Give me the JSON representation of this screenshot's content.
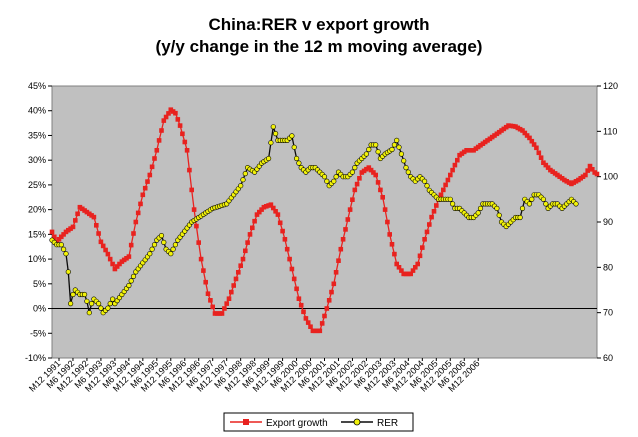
{
  "chart_data": {
    "type": "line",
    "title": "China:RER v export growth",
    "subtitle": "(y/y change in the 12 m moving average)",
    "y_left": {
      "ylim": [
        -0.1,
        0.45
      ],
      "ticks": [
        "-10%",
        "-5%",
        "0%",
        "5%",
        "10%",
        "15%",
        "20%",
        "25%",
        "30%",
        "35%",
        "40%",
        "45%"
      ]
    },
    "y_right": {
      "ylim": [
        60,
        120
      ],
      "ticks": [
        "60",
        "70",
        "80",
        "90",
        "100",
        "110",
        "120"
      ]
    },
    "x_tick_labels": [
      "M12 1991",
      "M6 1992",
      "M12 1992",
      "M6 1993",
      "M12 1993",
      "M6 1994",
      "M12 1994",
      "M6 1995",
      "M12 1995",
      "M6 1996",
      "M12 1996",
      "M6 1997",
      "M12 1997",
      "M6 1998",
      "M12 1998",
      "M6 1999",
      "M12 1999",
      "M6 2000",
      "M12 2000",
      "M6 2001",
      "M12 2001",
      "M6 2002",
      "M12 2002",
      "M6 2003",
      "M12 2003",
      "M6 2004",
      "M12 2004",
      "M6 2005",
      "M12 2005",
      "M6 2006",
      "M12 2006"
    ],
    "grid": false,
    "legend_placement": "bottom",
    "series": [
      {
        "name": "Export growth",
        "axis": "left",
        "color": "#e8221f",
        "marker": "square",
        "keypoints": [
          [
            0,
            0.155
          ],
          [
            2,
            0.135
          ],
          [
            6,
            0.155
          ],
          [
            9,
            0.165
          ],
          [
            12,
            0.205
          ],
          [
            15,
            0.195
          ],
          [
            18,
            0.185
          ],
          [
            21,
            0.135
          ],
          [
            24,
            0.11
          ],
          [
            27,
            0.08
          ],
          [
            30,
            0.095
          ],
          [
            33,
            0.105
          ],
          [
            36,
            0.175
          ],
          [
            39,
            0.23
          ],
          [
            42,
            0.27
          ],
          [
            45,
            0.32
          ],
          [
            48,
            0.38
          ],
          [
            51,
            0.402
          ],
          [
            53,
            0.395
          ],
          [
            55,
            0.37
          ],
          [
            58,
            0.32
          ],
          [
            61,
            0.2
          ],
          [
            64,
            0.1
          ],
          [
            67,
            0.03
          ],
          [
            70,
            -0.01
          ],
          [
            73,
            -0.01
          ],
          [
            76,
            0.02
          ],
          [
            79,
            0.06
          ],
          [
            82,
            0.1
          ],
          [
            85,
            0.15
          ],
          [
            88,
            0.19
          ],
          [
            91,
            0.205
          ],
          [
            94,
            0.21
          ],
          [
            97,
            0.19
          ],
          [
            100,
            0.14
          ],
          [
            103,
            0.08
          ],
          [
            106,
            0.02
          ],
          [
            109,
            -0.02
          ],
          [
            112,
            -0.045
          ],
          [
            115,
            -0.045
          ],
          [
            118,
            0.0
          ],
          [
            121,
            0.05
          ],
          [
            124,
            0.12
          ],
          [
            127,
            0.18
          ],
          [
            130,
            0.24
          ],
          [
            133,
            0.275
          ],
          [
            136,
            0.285
          ],
          [
            139,
            0.27
          ],
          [
            142,
            0.225
          ],
          [
            145,
            0.15
          ],
          [
            148,
            0.09
          ],
          [
            151,
            0.07
          ],
          [
            154,
            0.07
          ],
          [
            157,
            0.09
          ],
          [
            160,
            0.14
          ],
          [
            163,
            0.185
          ],
          [
            166,
            0.22
          ],
          [
            169,
            0.25
          ],
          [
            172,
            0.28
          ],
          [
            175,
            0.31
          ],
          [
            178,
            0.32
          ],
          [
            181,
            0.32
          ],
          [
            184,
            0.33
          ],
          [
            187,
            0.34
          ],
          [
            190,
            0.35
          ],
          [
            193,
            0.36
          ],
          [
            196,
            0.37
          ],
          [
            199,
            0.368
          ],
          [
            202,
            0.36
          ],
          [
            205,
            0.345
          ],
          [
            208,
            0.325
          ],
          [
            211,
            0.295
          ],
          [
            214,
            0.28
          ],
          [
            217,
            0.27
          ],
          [
            220,
            0.26
          ],
          [
            223,
            0.252
          ],
          [
            226,
            0.26
          ],
          [
            229,
            0.27
          ],
          [
            231,
            0.288
          ],
          [
            233,
            0.275
          ],
          [
            234,
            0.272
          ]
        ]
      },
      {
        "name": "RER",
        "axis": "right",
        "color": "#0a0a0a",
        "marker_fill": "#f2f20a",
        "marker": "circle",
        "keypoints": [
          [
            0,
            86
          ],
          [
            2,
            85
          ],
          [
            4,
            85
          ],
          [
            6,
            83
          ],
          [
            7,
            79
          ],
          [
            8,
            72
          ],
          [
            9,
            74
          ],
          [
            10,
            75
          ],
          [
            12,
            74
          ],
          [
            14,
            74
          ],
          [
            15,
            72.5
          ],
          [
            16,
            70
          ],
          [
            17,
            72
          ],
          [
            18,
            73
          ],
          [
            20,
            72
          ],
          [
            21,
            71
          ],
          [
            22,
            70
          ],
          [
            24,
            71
          ],
          [
            26,
            73
          ],
          [
            27,
            72
          ],
          [
            30,
            74
          ],
          [
            33,
            76
          ],
          [
            36,
            79
          ],
          [
            39,
            81
          ],
          [
            42,
            83
          ],
          [
            45,
            86
          ],
          [
            47,
            87
          ],
          [
            49,
            84
          ],
          [
            51,
            83
          ],
          [
            54,
            86
          ],
          [
            57,
            88
          ],
          [
            60,
            90
          ],
          [
            63,
            91
          ],
          [
            66,
            92
          ],
          [
            69,
            93
          ],
          [
            72,
            93.5
          ],
          [
            75,
            94
          ],
          [
            78,
            96
          ],
          [
            81,
            98
          ],
          [
            84,
            102
          ],
          [
            87,
            101
          ],
          [
            90,
            103
          ],
          [
            93,
            104
          ],
          [
            95,
            111
          ],
          [
            97,
            108
          ],
          [
            99,
            108
          ],
          [
            101,
            108
          ],
          [
            103,
            109
          ],
          [
            105,
            104
          ],
          [
            107,
            102
          ],
          [
            109,
            101
          ],
          [
            111,
            102
          ],
          [
            113,
            102
          ],
          [
            115,
            101
          ],
          [
            117,
            100
          ],
          [
            119,
            98
          ],
          [
            121,
            99
          ],
          [
            123,
            101
          ],
          [
            125,
            100
          ],
          [
            127,
            100
          ],
          [
            129,
            101
          ],
          [
            131,
            103
          ],
          [
            133,
            104
          ],
          [
            135,
            105
          ],
          [
            137,
            107
          ],
          [
            139,
            107
          ],
          [
            141,
            104
          ],
          [
            143,
            105
          ],
          [
            146,
            106
          ],
          [
            148,
            108
          ],
          [
            150,
            105
          ],
          [
            152,
            102
          ],
          [
            154,
            100
          ],
          [
            156,
            99
          ],
          [
            158,
            100
          ],
          [
            160,
            99
          ],
          [
            162,
            97
          ],
          [
            164,
            96
          ],
          [
            166,
            95
          ],
          [
            169,
            95
          ],
          [
            171,
            95
          ],
          [
            173,
            93
          ],
          [
            175,
            93
          ],
          [
            177,
            92
          ],
          [
            179,
            91
          ],
          [
            181,
            91
          ],
          [
            183,
            92
          ],
          [
            185,
            94
          ],
          [
            187,
            94
          ],
          [
            189,
            94
          ],
          [
            191,
            93
          ],
          [
            193,
            90
          ],
          [
            195,
            89
          ],
          [
            197,
            90
          ],
          [
            199,
            91
          ],
          [
            201,
            91
          ],
          [
            203,
            95
          ],
          [
            205,
            94
          ],
          [
            207,
            96
          ],
          [
            209,
            96
          ],
          [
            211,
            95
          ],
          [
            213,
            93
          ],
          [
            215,
            94
          ],
          [
            217,
            94
          ],
          [
            219,
            93
          ],
          [
            221,
            94
          ],
          [
            223,
            95
          ],
          [
            225,
            94
          ]
        ]
      }
    ]
  },
  "legend": {
    "items": [
      "Export growth",
      "RER"
    ]
  }
}
